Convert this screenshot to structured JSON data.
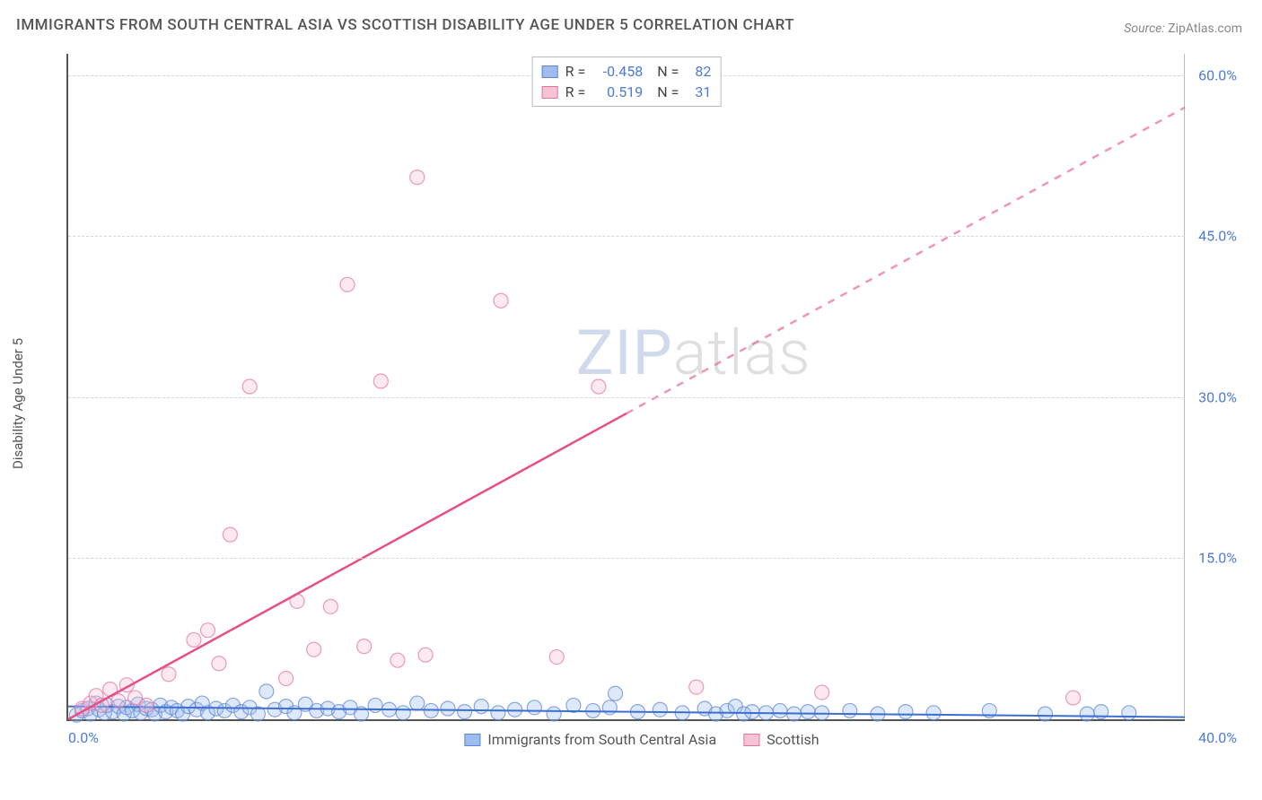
{
  "title": "IMMIGRANTS FROM SOUTH CENTRAL ASIA VS SCOTTISH DISABILITY AGE UNDER 5 CORRELATION CHART",
  "source": {
    "label": "Source:",
    "value": "ZipAtlas.com"
  },
  "watermark": {
    "prefix": "ZIP",
    "suffix": "atlas"
  },
  "chart": {
    "type": "scatter",
    "xlabel": "",
    "ylabel": "Disability Age Under 5",
    "background_color": "#ffffff",
    "grid_color": "#d6d6d6",
    "axis_color": "#555555",
    "tick_color": "#4d7bd8",
    "xlim": [
      0,
      40
    ],
    "ylim": [
      0,
      62
    ],
    "xticks": [
      0.0,
      40.0
    ],
    "xtick_labels": [
      "0.0%",
      "40.0%"
    ],
    "yticks": [
      15.0,
      30.0,
      45.0,
      60.0
    ],
    "ytick_labels": [
      "15.0%",
      "30.0%",
      "45.0%",
      "60.0%"
    ],
    "tick_fontsize": 16,
    "label_fontsize": 15,
    "marker_radius": 8,
    "marker_opacity": 0.35,
    "series": [
      {
        "name": "Immigrants from South Central Asia",
        "color_fill": "#9ebced",
        "color_stroke": "#5b85d6",
        "R": -0.458,
        "N": 82,
        "trend": {
          "x1": 0,
          "y1": 1.2,
          "x2": 40,
          "y2": 0.2,
          "color": "#3d6fd1",
          "width": 2,
          "dash_after_x": null
        },
        "points": [
          [
            0.3,
            0.4
          ],
          [
            0.5,
            0.8
          ],
          [
            0.7,
            1.0
          ],
          [
            0.8,
            0.5
          ],
          [
            1.0,
            1.5
          ],
          [
            1.1,
            0.9
          ],
          [
            1.3,
            0.6
          ],
          [
            1.4,
            1.3
          ],
          [
            1.6,
            0.7
          ],
          [
            1.8,
            1.2
          ],
          [
            2.0,
            0.5
          ],
          [
            2.1,
            1.1
          ],
          [
            2.3,
            0.8
          ],
          [
            2.5,
            1.4
          ],
          [
            2.6,
            0.6
          ],
          [
            2.8,
            1.0
          ],
          [
            3.0,
            0.9
          ],
          [
            3.1,
            0.5
          ],
          [
            3.3,
            1.3
          ],
          [
            3.5,
            0.7
          ],
          [
            3.7,
            1.1
          ],
          [
            3.9,
            0.8
          ],
          [
            4.1,
            0.5
          ],
          [
            4.3,
            1.2
          ],
          [
            4.6,
            0.9
          ],
          [
            4.8,
            1.5
          ],
          [
            5.0,
            0.6
          ],
          [
            5.3,
            1.0
          ],
          [
            5.6,
            0.8
          ],
          [
            5.9,
            1.3
          ],
          [
            6.2,
            0.7
          ],
          [
            6.5,
            1.1
          ],
          [
            6.8,
            0.5
          ],
          [
            7.1,
            2.6
          ],
          [
            7.4,
            0.9
          ],
          [
            7.8,
            1.2
          ],
          [
            8.1,
            0.6
          ],
          [
            8.5,
            1.4
          ],
          [
            8.9,
            0.8
          ],
          [
            9.3,
            1.0
          ],
          [
            9.7,
            0.7
          ],
          [
            10.1,
            1.1
          ],
          [
            10.5,
            0.5
          ],
          [
            11.0,
            1.3
          ],
          [
            11.5,
            0.9
          ],
          [
            12.0,
            0.6
          ],
          [
            12.5,
            1.5
          ],
          [
            13.0,
            0.8
          ],
          [
            13.6,
            1.0
          ],
          [
            14.2,
            0.7
          ],
          [
            14.8,
            1.2
          ],
          [
            15.4,
            0.6
          ],
          [
            16.0,
            0.9
          ],
          [
            16.7,
            1.1
          ],
          [
            17.4,
            0.5
          ],
          [
            18.1,
            1.3
          ],
          [
            18.8,
            0.8
          ],
          [
            19.4,
            1.1
          ],
          [
            19.6,
            2.4
          ],
          [
            20.4,
            0.7
          ],
          [
            21.2,
            0.9
          ],
          [
            22.0,
            0.6
          ],
          [
            22.8,
            1.0
          ],
          [
            23.2,
            0.5
          ],
          [
            23.6,
            0.8
          ],
          [
            23.9,
            1.2
          ],
          [
            24.2,
            0.5
          ],
          [
            24.5,
            0.7
          ],
          [
            25.0,
            0.6
          ],
          [
            25.5,
            0.8
          ],
          [
            26.0,
            0.5
          ],
          [
            26.5,
            0.7
          ],
          [
            27.0,
            0.6
          ],
          [
            28.0,
            0.8
          ],
          [
            29.0,
            0.5
          ],
          [
            30.0,
            0.7
          ],
          [
            31.0,
            0.6
          ],
          [
            33.0,
            0.8
          ],
          [
            35.0,
            0.5
          ],
          [
            36.5,
            0.5
          ],
          [
            37.0,
            0.7
          ],
          [
            38.0,
            0.6
          ]
        ]
      },
      {
        "name": "Scottish",
        "color_fill": "#f7c4d4",
        "color_stroke": "#e670a0",
        "R": 0.519,
        "N": 31,
        "trend": {
          "x1": 0,
          "y1": 0.0,
          "x2": 40,
          "y2": 57.0,
          "color": "#e84f87",
          "width": 2.5,
          "dash_after_x": 20.0
        },
        "points": [
          [
            0.5,
            1.0
          ],
          [
            0.8,
            1.5
          ],
          [
            1.0,
            2.2
          ],
          [
            1.2,
            1.3
          ],
          [
            1.5,
            2.8
          ],
          [
            1.8,
            1.7
          ],
          [
            2.1,
            3.2
          ],
          [
            2.4,
            2.0
          ],
          [
            2.8,
            1.3
          ],
          [
            3.6,
            4.2
          ],
          [
            4.5,
            7.4
          ],
          [
            5.0,
            8.3
          ],
          [
            5.4,
            5.2
          ],
          [
            5.8,
            17.2
          ],
          [
            6.5,
            31.0
          ],
          [
            7.8,
            3.8
          ],
          [
            8.2,
            11.0
          ],
          [
            8.8,
            6.5
          ],
          [
            9.4,
            10.5
          ],
          [
            10.0,
            40.5
          ],
          [
            10.6,
            6.8
          ],
          [
            11.2,
            31.5
          ],
          [
            11.8,
            5.5
          ],
          [
            12.5,
            50.5
          ],
          [
            12.8,
            6.0
          ],
          [
            15.5,
            39.0
          ],
          [
            17.5,
            5.8
          ],
          [
            19.0,
            31.0
          ],
          [
            22.5,
            3.0
          ],
          [
            27.0,
            2.5
          ],
          [
            36.0,
            2.0
          ]
        ]
      }
    ]
  },
  "legend_top": {
    "r_label": "R",
    "n_label": "N",
    "equals": "="
  },
  "legend_bottom": {
    "items": [
      "Immigrants from South Central Asia",
      "Scottish"
    ]
  }
}
